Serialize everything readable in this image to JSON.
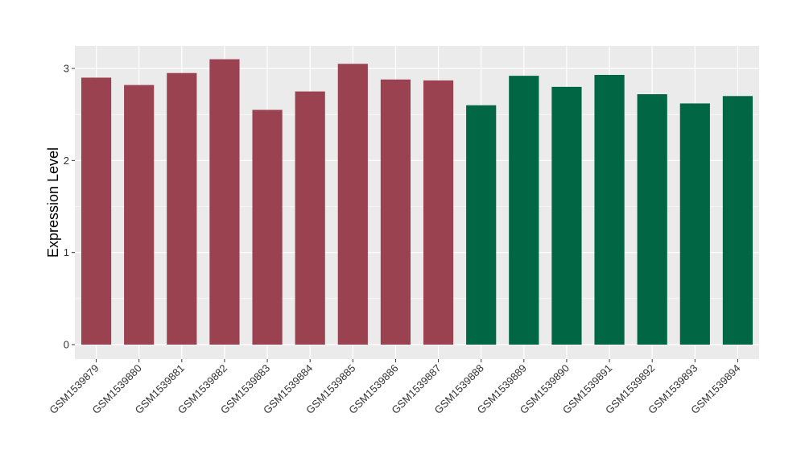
{
  "chart_data": {
    "type": "bar",
    "title": "",
    "xlabel": "",
    "ylabel": "Expression Level",
    "ylim": [
      0,
      3.25
    ],
    "yticks": [
      0,
      1,
      2,
      3
    ],
    "grid": true,
    "categories": [
      "GSM1539879",
      "GSM1539880",
      "GSM1539881",
      "GSM1539882",
      "GSM1539883",
      "GSM1539884",
      "GSM1539885",
      "GSM1539886",
      "GSM1539887",
      "GSM1539888",
      "GSM1539889",
      "GSM1539890",
      "GSM1539891",
      "GSM1539892",
      "GSM1539893",
      "GSM1539894"
    ],
    "values": [
      2.9,
      2.82,
      2.95,
      3.1,
      2.55,
      2.75,
      3.05,
      2.88,
      2.87,
      2.6,
      2.92,
      2.8,
      2.93,
      2.72,
      2.62,
      2.7
    ],
    "bar_colors": [
      "#9b4250",
      "#9b4250",
      "#9b4250",
      "#9b4250",
      "#9b4250",
      "#9b4250",
      "#9b4250",
      "#9b4250",
      "#9b4250",
      "#006644",
      "#006644",
      "#006644",
      "#006644",
      "#006644",
      "#006644",
      "#006644"
    ],
    "panel_background": "#ebebeb",
    "grid_color": "#ffffff"
  }
}
